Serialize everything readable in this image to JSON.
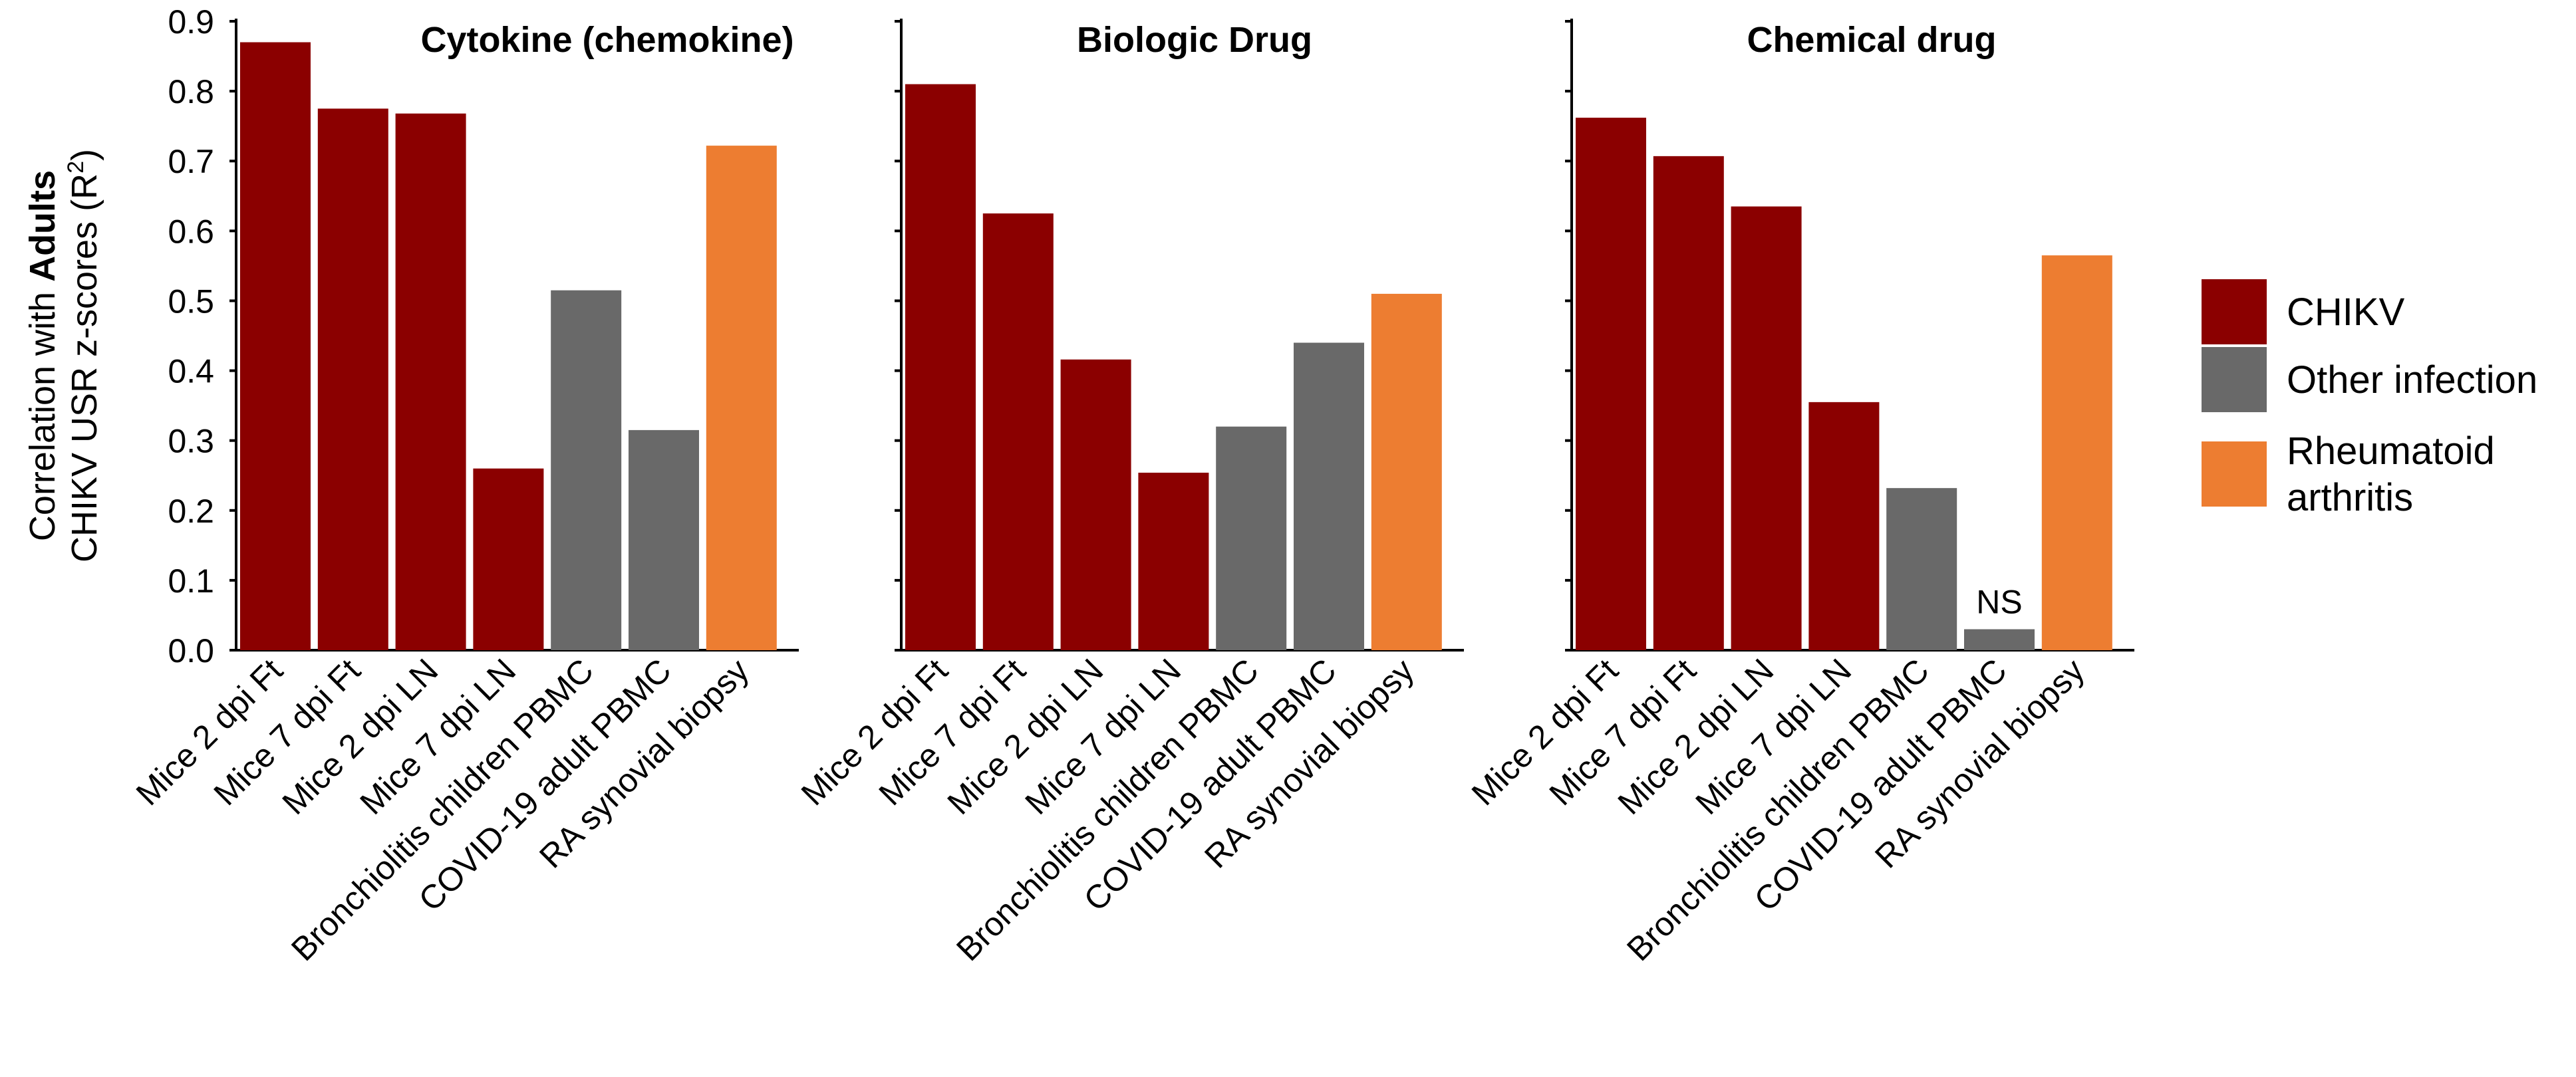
{
  "chart_data": {
    "type": "bar",
    "ylabel_line1_prefix": "Correlation with ",
    "ylabel_line1_bold": "Adults",
    "ylabel_line2": "CHIKV USR z-scores (R",
    "ylabel_sup": "2",
    "ylabel_close": ")",
    "ylim": [
      0,
      0.9
    ],
    "yticks": [
      "0.0",
      "0.1",
      "0.2",
      "0.3",
      "0.4",
      "0.5",
      "0.6",
      "0.7",
      "0.8",
      "0.9"
    ],
    "categories": [
      "Mice 2 dpi Ft",
      "Mice 7 dpi Ft",
      "Mice 2 dpi LN",
      "Mice 7 dpi LN",
      "Bronchiolitis children PBMC",
      "COVID-19 adult PBMC",
      "RA synovial biopsy"
    ],
    "groups": [
      "CHIKV",
      "CHIKV",
      "CHIKV",
      "CHIKV",
      "Other infection",
      "Other infection",
      "Rheumatoid arthritis"
    ],
    "colors": {
      "CHIKV": "#8B0000",
      "Other infection": "#696969",
      "Rheumatoid arthritis": "#ED7D31"
    },
    "legend": [
      {
        "group": "CHIKV",
        "lines": [
          "CHIKV"
        ]
      },
      {
        "group": "Other infection",
        "lines": [
          "Other infection"
        ]
      },
      {
        "group": "Rheumatoid arthritis",
        "lines": [
          "Rheumatoid",
          "arthritis"
        ]
      }
    ],
    "panels": [
      {
        "title": "Cytokine (chemokine)",
        "values": [
          0.87,
          0.775,
          0.768,
          0.26,
          0.515,
          0.315,
          0.722
        ],
        "annotations": []
      },
      {
        "title": "Biologic Drug",
        "values": [
          0.81,
          0.625,
          0.416,
          0.254,
          0.32,
          0.44,
          0.51
        ],
        "annotations": []
      },
      {
        "title": "Chemical drug",
        "values": [
          0.762,
          0.707,
          0.635,
          0.355,
          0.232,
          0.03,
          0.565
        ],
        "annotations": [
          {
            "index": 5,
            "text": "NS"
          }
        ]
      }
    ]
  }
}
